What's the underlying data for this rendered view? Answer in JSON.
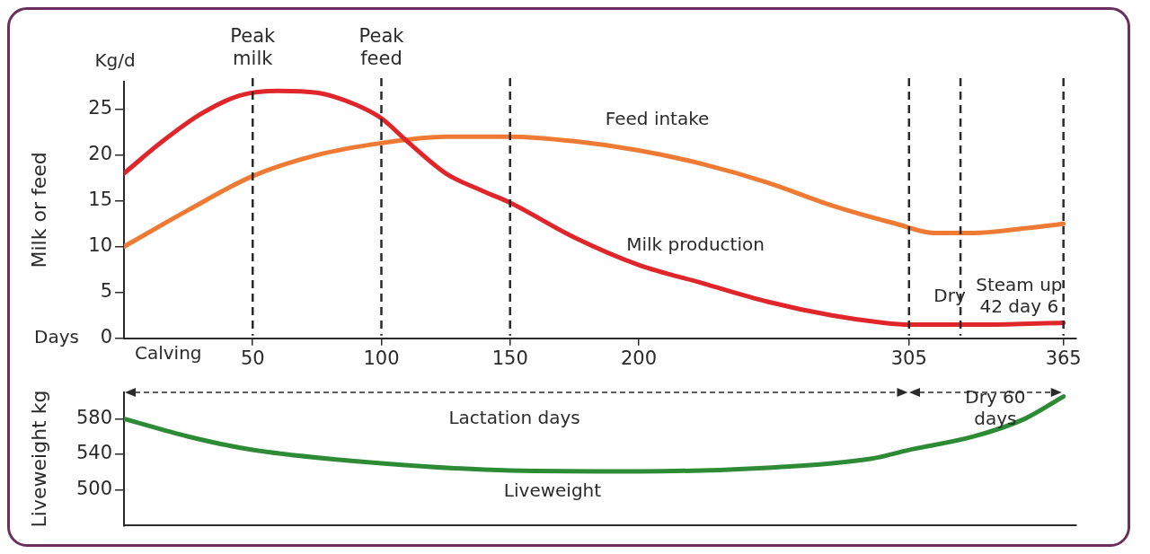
{
  "chart_data": [
    {
      "type": "line",
      "ylabel": "Milk or feed",
      "xlim": [
        0,
        370
      ],
      "xticks": [
        50,
        100,
        150,
        200,
        305,
        365
      ],
      "ylim": [
        0,
        28
      ],
      "yticks": [
        0,
        5,
        10,
        15,
        20,
        25
      ],
      "grid": false,
      "legend": false,
      "marker": "none",
      "series": [
        {
          "color": "#e0262b",
          "x": [
            0,
            15,
            30,
            45,
            60,
            75,
            90,
            100,
            110,
            125,
            140,
            150,
            175,
            200,
            225,
            250,
            275,
            295,
            305,
            335,
            365
          ],
          "values": [
            18,
            21.5,
            24.5,
            26.5,
            27,
            26.8,
            25.5,
            24,
            21.5,
            18,
            16,
            14.8,
            11,
            8,
            6,
            4,
            2.5,
            1.7,
            1.5,
            1.5,
            1.7
          ]
        },
        {
          "color": "#ef7a34",
          "x": [
            0,
            25,
            50,
            75,
            100,
            125,
            150,
            175,
            200,
            225,
            250,
            275,
            300,
            315,
            330,
            350,
            365
          ],
          "values": [
            10,
            14,
            17.7,
            20,
            21.3,
            22,
            22,
            21.5,
            20.5,
            19,
            17,
            14.5,
            12.5,
            11.5,
            11.5,
            12,
            12.5
          ]
        }
      ],
      "ref_lines": [
        {
          "axis": "x",
          "value": 50,
          "label": "Peak\nmilk"
        },
        {
          "axis": "x",
          "value": 100,
          "label": "Peak\nfeed"
        },
        {
          "axis": "x",
          "value": 150,
          "label": null
        },
        {
          "axis": "x",
          "value": 305,
          "label": null
        },
        {
          "axis": "x",
          "value": 325,
          "label": null
        },
        {
          "axis": "x",
          "value": 365,
          "label": null
        }
      ],
      "annotations": [
        "Kg/d",
        "Days",
        "Calving",
        "Feed intake",
        "Milk production",
        "Dry",
        "Steam up\n42 day 6"
      ]
    },
    {
      "type": "line",
      "ylabel": "Liveweight kg",
      "xlim": [
        0,
        370
      ],
      "ylim": [
        460,
        610
      ],
      "yticks": [
        500,
        540,
        580
      ],
      "tick_labels": "y",
      "grid": false,
      "legend": false,
      "marker": "none",
      "series": [
        {
          "color": "#2e8b35",
          "x": [
            0,
            25,
            50,
            100,
            150,
            200,
            250,
            290,
            305,
            330,
            350,
            365
          ],
          "values": [
            580,
            560,
            545,
            530,
            522,
            521,
            525,
            535,
            545,
            560,
            580,
            605
          ]
        }
      ],
      "annotations": [
        "Lactation days",
        "Dry 60\ndays",
        "Liveweight"
      ]
    }
  ]
}
